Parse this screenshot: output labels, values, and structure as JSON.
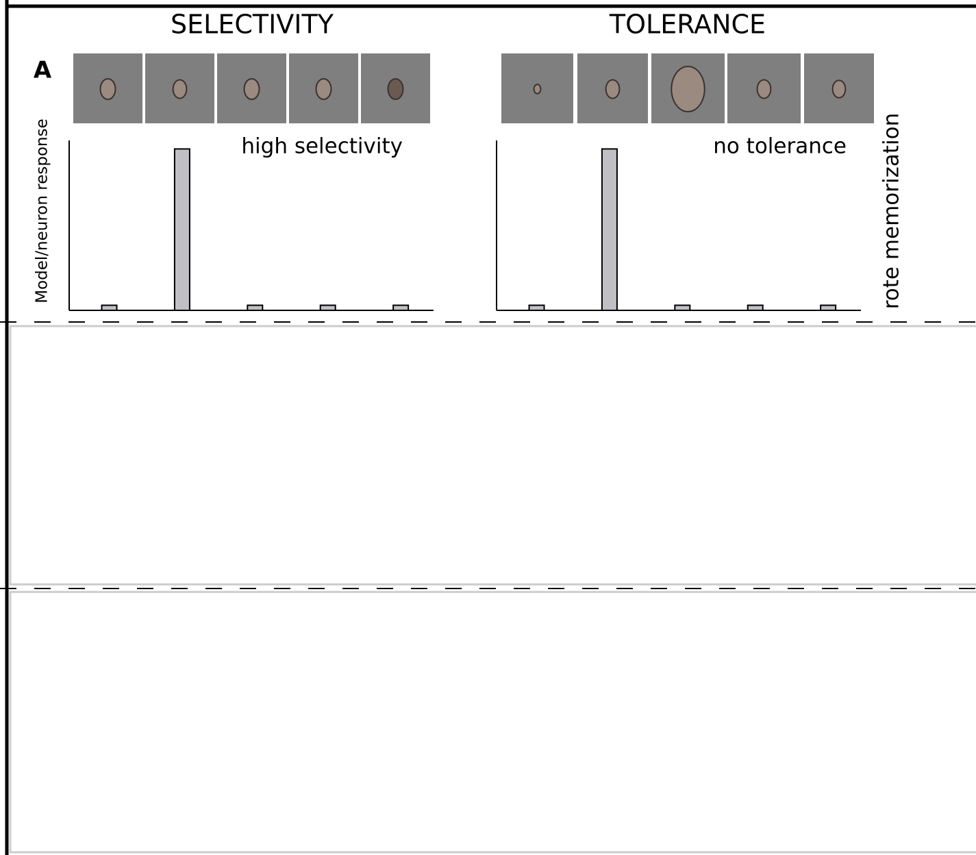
{
  "panel_label": "A",
  "row_label": "rote memorization",
  "chart_data": [
    {
      "type": "bar",
      "title": "SELECTIVITY",
      "annotation": "high selectivity",
      "y_label": "Model/neuron response",
      "categories": [
        null,
        null,
        null,
        null,
        null
      ],
      "values": [
        0.03,
        0.95,
        0.03,
        0.03,
        0.03
      ],
      "color": "#c0c0c4",
      "ylim": [
        0,
        1
      ]
    },
    {
      "type": "bar",
      "title": "TOLERANCE",
      "annotation": "no tolerance",
      "categories": [
        null,
        null,
        null,
        null,
        null
      ],
      "values": [
        0.03,
        0.95,
        0.03,
        0.03,
        0.03
      ],
      "color": "#c0c0c4",
      "ylim": [
        0,
        1
      ]
    }
  ]
}
